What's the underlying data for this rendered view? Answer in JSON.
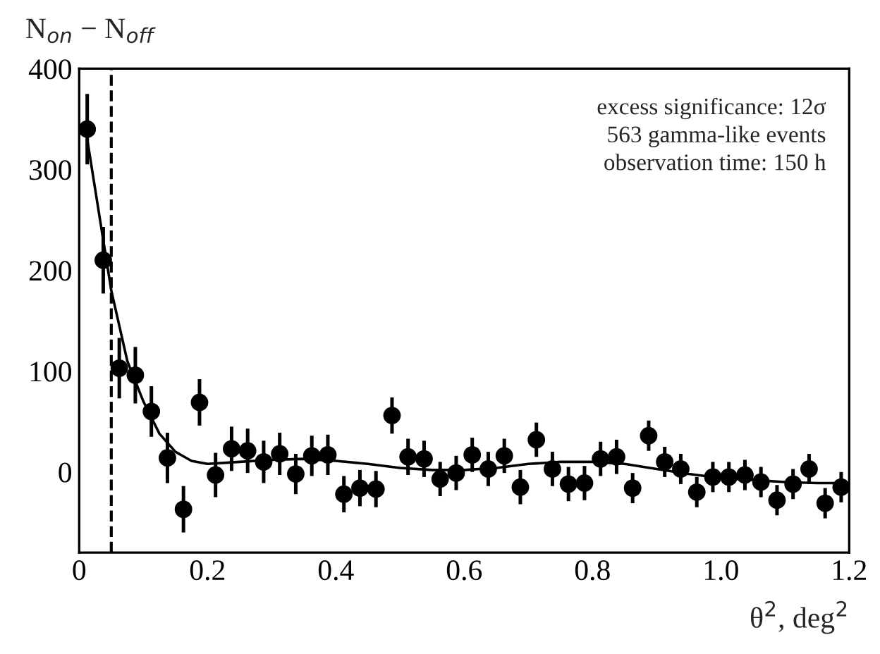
{
  "chart_data": {
    "type": "scatter",
    "xlabel": "θ$^{2}$, deg$^{2}$",
    "ylabel": "N$_{on}$ − N$_{off}$",
    "xlim": [
      0,
      1.2
    ],
    "ylim": [
      -80,
      400
    ],
    "xticks": [
      0,
      0.2,
      0.4,
      0.6,
      0.8,
      {
        "value": 1.0,
        "label": "1.0"
      },
      1.2
    ],
    "yticks": [
      0,
      100,
      200,
      300,
      400
    ],
    "grid": false,
    "legend": false,
    "marker": "circle",
    "ref_lines": [
      {
        "axis": "x",
        "value": 0.05,
        "line_style": "dashed",
        "color": "#000000"
      }
    ],
    "annotations": [
      "excess significance: 12σ",
      "563 gamma-like events",
      "observation time: 150 h"
    ],
    "series": [
      {
        "color": "#000000",
        "x": [
          0.0125,
          0.0375,
          0.0625,
          0.0875,
          0.1125,
          0.1375,
          0.1625,
          0.1875,
          0.2125,
          0.2375,
          0.2625,
          0.2875,
          0.3125,
          0.3375,
          0.3625,
          0.3875,
          0.4125,
          0.4375,
          0.4625,
          0.4875,
          0.5125,
          0.5375,
          0.5625,
          0.5875,
          0.6125,
          0.6375,
          0.6625,
          0.6875,
          0.7125,
          0.7375,
          0.7625,
          0.7875,
          0.8125,
          0.8375,
          0.8625,
          0.8875,
          0.9125,
          0.9375,
          0.9625,
          0.9875,
          1.0125,
          1.0375,
          1.0625,
          1.0875,
          1.1125,
          1.1375,
          1.1625,
          1.1875
        ],
        "values": [
          340,
          210,
          103,
          96,
          60,
          14,
          -37,
          69,
          -3,
          23,
          21,
          10,
          18,
          -2,
          16,
          17,
          -22,
          -16,
          -17,
          56,
          15,
          13,
          -7,
          -1,
          17,
          3,
          16,
          -15,
          32,
          3,
          -12,
          -11,
          13,
          15,
          -16,
          36,
          10,
          3,
          -20,
          -5,
          -5,
          -3,
          -10,
          -28,
          -12,
          3,
          -31,
          -15
        ],
        "errors": [
          35,
          33,
          30,
          28,
          25,
          25,
          23,
          23,
          22,
          22,
          22,
          21,
          21,
          20,
          20,
          20,
          18,
          18,
          18,
          18,
          18,
          18,
          17,
          17,
          17,
          17,
          17,
          17,
          17,
          17,
          17,
          17,
          17,
          17,
          15,
          15,
          15,
          15,
          15,
          15,
          15,
          15,
          15,
          15,
          15,
          15,
          15,
          15
        ]
      },
      {
        "type": "line",
        "color": "#000000",
        "line_style": "solid",
        "marker": "none",
        "x": [
          0.0125,
          0.03,
          0.05,
          0.075,
          0.1,
          0.125,
          0.15,
          0.175,
          0.2,
          0.25,
          0.3,
          0.35,
          0.4,
          0.45,
          0.5,
          0.55,
          0.6,
          0.65,
          0.7,
          0.75,
          0.8,
          0.85,
          0.9,
          0.95,
          1.0,
          1.05,
          1.1,
          1.15,
          1.2
        ],
        "values": [
          330,
          260,
          180,
          110,
          70,
          38,
          20,
          11,
          8,
          10,
          12,
          13,
          11,
          8,
          4,
          2,
          2,
          4,
          8,
          10,
          10,
          8,
          3,
          -2,
          -6,
          -8,
          -10,
          -11,
          -11
        ]
      }
    ]
  }
}
